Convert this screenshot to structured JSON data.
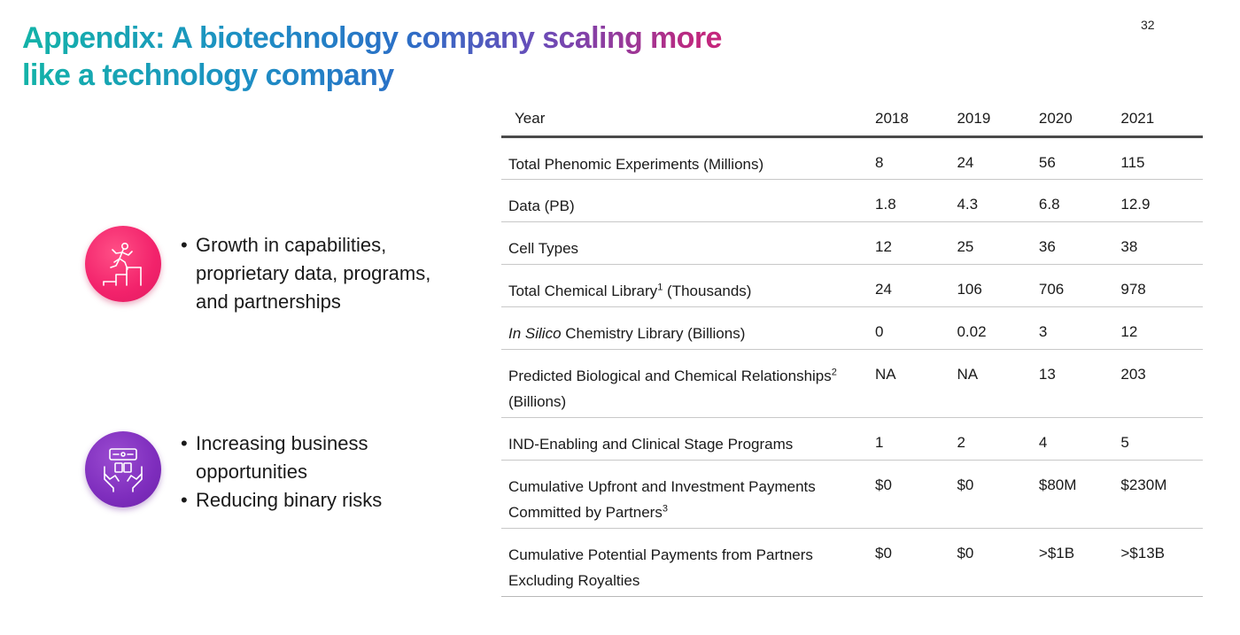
{
  "page_number": "32",
  "title": {
    "line1": "Appendix: A biotechnology company scaling more",
    "line2": "like a technology company"
  },
  "colors": {
    "title_gradient": [
      "#13b3a8",
      "#2b6fc7",
      "#6a4bb8",
      "#e0207a"
    ],
    "icon_pink": "#f2226b",
    "icon_purple": "#7e2dbd"
  },
  "features": [
    {
      "icon": "person-climbing-steps-icon",
      "bullets": [
        "Growth in capabilities, proprietary data, programs, and partnerships"
      ]
    },
    {
      "icon": "hands-holding-screen-icon",
      "bullets": [
        "Increasing business opportunities",
        "Reducing binary risks"
      ]
    }
  ],
  "table": {
    "header": {
      "label": "Year",
      "years": [
        "2018",
        "2019",
        "2020",
        "2021"
      ]
    },
    "rows": [
      {
        "label_pre": "Total Phenomic Experiments (Millions)",
        "label_italic": "",
        "sup": "",
        "label_post": "",
        "values": [
          "8",
          "24",
          "56",
          "115"
        ]
      },
      {
        "label_pre": "Data (PB)",
        "label_italic": "",
        "sup": "",
        "label_post": "",
        "values": [
          "1.8",
          "4.3",
          "6.8",
          "12.9"
        ]
      },
      {
        "label_pre": "Cell Types",
        "label_italic": "",
        "sup": "",
        "label_post": "",
        "values": [
          "12",
          "25",
          "36",
          "38"
        ]
      },
      {
        "label_pre": "Total Chemical Library",
        "label_italic": "",
        "sup": "1",
        "label_post": " (Thousands)",
        "values": [
          "24",
          "106",
          "706",
          "978"
        ]
      },
      {
        "label_pre": "",
        "label_italic": "In Silico",
        "sup": "",
        "label_post": " Chemistry Library (Billions)",
        "values": [
          "0",
          "0.02",
          "3",
          "12"
        ]
      },
      {
        "label_pre": "Predicted Biological and Chemical Relationships",
        "label_italic": "",
        "sup": "2",
        "label_post": " (Billions)",
        "values": [
          "NA",
          "NA",
          "13",
          "203"
        ]
      },
      {
        "label_pre": "IND-Enabling and Clinical Stage Programs",
        "label_italic": "",
        "sup": "",
        "label_post": "",
        "values": [
          "1",
          "2",
          "4",
          "5"
        ]
      },
      {
        "label_pre": "Cumulative Upfront and Investment Payments Committed by Partners",
        "label_italic": "",
        "sup": "3",
        "label_post": "",
        "values": [
          "$0",
          "$0",
          "$80M",
          "$230M"
        ]
      },
      {
        "label_pre": "Cumulative Potential Payments from Partners Excluding Royalties",
        "label_italic": "",
        "sup": "",
        "label_post": "",
        "values": [
          "$0",
          "$0",
          ">$1B",
          ">$13B"
        ]
      }
    ]
  }
}
